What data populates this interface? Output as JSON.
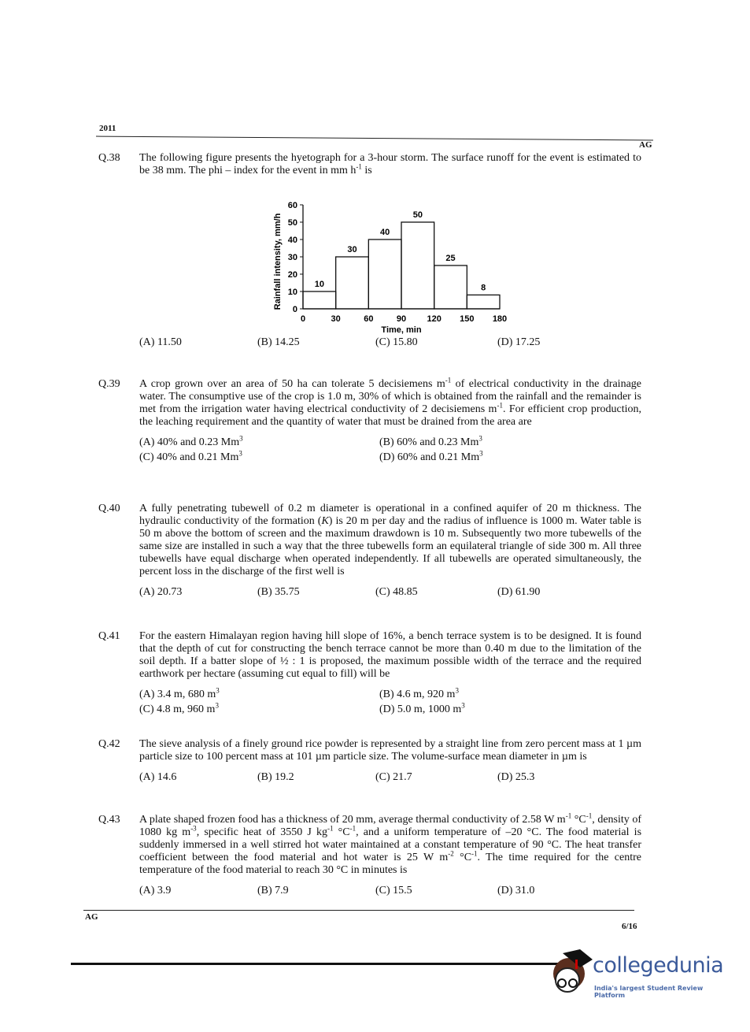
{
  "header": {
    "year": "2011",
    "paper_code": "AG"
  },
  "questions": [
    {
      "num": "Q.38",
      "text_html": "The following figure presents the hyetograph for a 3-hour storm. The surface runoff for the event is estimated to be 38 mm. The phi – index for the event in mm h<sup>-1</sup> is",
      "options": [
        "(A) 11.50",
        "(B) 14.25",
        "(C) 15.80",
        "(D) 17.25"
      ]
    },
    {
      "num": "Q.39",
      "text_html": "A crop grown over an area of 50 ha can tolerate 5 decisiemens m<sup>-1</sup> of electrical conductivity in the drainage water. The consumptive use of the crop is 1.0 m, 30% of which is obtained from the rainfall and the remainder is met from the irrigation water having electrical conductivity of 2 decisiemens m<sup>-1</sup>. For efficient crop production, the leaching requirement and the quantity of water that must be drained from the area are",
      "options_html": [
        "(A) 40% and 0.23 Mm<sup>3</sup>",
        "(B) 60% and 0.23 Mm<sup>3</sup>",
        "(C) 40% and 0.21 Mm<sup>3</sup>",
        "(D) 60% and 0.21 Mm<sup>3</sup>"
      ]
    },
    {
      "num": "Q.40",
      "text_html": "A fully penetrating tubewell of 0.2 m diameter is operational in a confined aquifer of 20 m thickness. The hydraulic conductivity of the formation (<i>K</i>) is 20 m per day and the radius of influence is 1000 m. Water table is 50 m above the bottom of screen and the maximum drawdown is 10 m. Subsequently two more tubewells of the same size are installed in such a way that the three tubewells form an equilateral triangle of side 300 m. All three tubewells have equal discharge when operated independently. If all tubewells are operated simultaneously, the percent loss in the discharge of the first well is",
      "options": [
        "(A) 20.73",
        "(B) 35.75",
        "(C) 48.85",
        "(D) 61.90"
      ]
    },
    {
      "num": "Q.41",
      "text_html": "For the eastern Himalayan region having hill slope of 16%, a bench terrace system is to be designed. It is found that the depth of cut for constructing the bench terrace cannot be more than 0.40 m due to the limitation of the soil depth. If a batter slope of ½ : 1 is proposed, the maximum possible width of the terrace and the required earthwork per hectare (assuming cut equal to fill) will be",
      "options_html": [
        "(A) 3.4 m, 680 m<sup>3</sup>",
        "(B) 4.6 m, 920 m<sup>3</sup>",
        "(C) 4.8 m, 960 m<sup>3</sup>",
        "(D) 5.0 m, 1000 m<sup>3</sup>"
      ]
    },
    {
      "num": "Q.42",
      "text_html": "The sieve analysis of a finely ground rice powder is represented by a straight line from zero percent mass at 1 µm particle size to 100 percent mass at 101 µm particle size. The volume-surface mean diameter in µm is",
      "options": [
        "(A) 14.6",
        "(B) 19.2",
        "(C) 21.7",
        "(D) 25.3"
      ]
    },
    {
      "num": "Q.43",
      "text_html": "A plate shaped frozen food has a thickness of 20 mm, average thermal conductivity of 2.58 W m<sup>-1</sup> °C<sup>-1</sup>, density of 1080 kg m<sup>-3</sup>, specific heat of 3550 J kg<sup>-1</sup> °C<sup>-1</sup>, and a uniform temperature of –20 °C. The food material is suddenly immersed in a well stirred hot water maintained at a constant temperature of 90 °C. The heat transfer coefficient between the food material and hot water is 25 W m<sup>-2</sup> °C<sup>-1</sup>. The time required for the centre temperature of the food material to reach 30 °C in minutes is",
      "options": [
        "(A) 3.9",
        "(B) 7.9",
        "(C) 15.5",
        "(D) 31.0"
      ]
    }
  ],
  "chart_data": {
    "type": "bar",
    "title": "",
    "xlabel": "Time, min",
    "ylabel": "Rainfall intensity, mm/h",
    "x_ticks": [
      0,
      30,
      60,
      90,
      120,
      150,
      180
    ],
    "y_ticks": [
      0,
      10,
      20,
      30,
      40,
      50,
      60
    ],
    "ylim": [
      0,
      60
    ],
    "xlim": [
      0,
      180
    ],
    "intervals": [
      [
        0,
        30
      ],
      [
        30,
        60
      ],
      [
        60,
        90
      ],
      [
        90,
        120
      ],
      [
        120,
        150
      ],
      [
        150,
        180
      ]
    ],
    "values": [
      10,
      30,
      40,
      50,
      25,
      8
    ],
    "grid": false
  },
  "footer": {
    "paper_code": "AG",
    "page": "6/16"
  },
  "watermark": {
    "brand": "collegedunia",
    "tagline": "India's largest Student Review Platform",
    "accent": "#3b5a9a"
  }
}
